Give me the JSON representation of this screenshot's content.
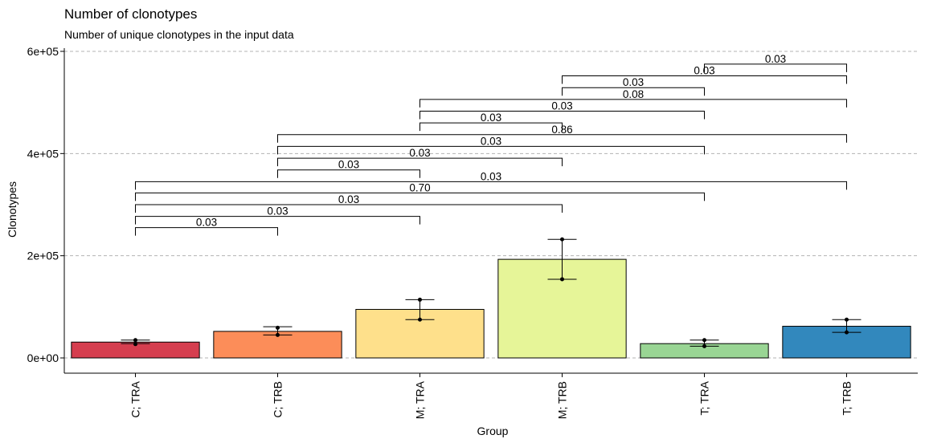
{
  "chart_data": {
    "type": "bar",
    "title": "Number of clonotypes",
    "subtitle": "Number of unique clonotypes in the input data",
    "xlabel": "Group",
    "ylabel": "Clonotypes",
    "ylim": [
      0,
      600000
    ],
    "y_ticks": [
      0,
      200000,
      400000,
      600000
    ],
    "y_tick_labels": [
      "0e+00",
      "2e+05",
      "4e+05",
      "6e+05"
    ],
    "grid": "horizontal-dashed",
    "categories": [
      "C; TRA",
      "C; TRB",
      "M; TRA",
      "M; TRB",
      "T; TRA",
      "T; TRB"
    ],
    "values": [
      31000,
      52000,
      95000,
      193000,
      28000,
      62000
    ],
    "error_low": [
      28000,
      45000,
      75000,
      154000,
      23000,
      50000
    ],
    "error_high": [
      35000,
      61000,
      114000,
      232000,
      35000,
      75000
    ],
    "points": [
      [
        27000,
        35000
      ],
      [
        45000,
        59000
      ],
      [
        75000,
        114000
      ],
      [
        154000,
        232000
      ],
      [
        23000,
        35000
      ],
      [
        50000,
        75000
      ]
    ],
    "colors": [
      "#d53e4f",
      "#fc8d59",
      "#fee08b",
      "#e6f598",
      "#99d594",
      "#3288bd"
    ],
    "comparisons": [
      {
        "a": 0,
        "b": 1,
        "y": 255000,
        "label": "0.03"
      },
      {
        "a": 0,
        "b": 2,
        "y": 277000,
        "label": "0.03"
      },
      {
        "a": 0,
        "b": 3,
        "y": 300000,
        "label": "0.03"
      },
      {
        "a": 0,
        "b": 4,
        "y": 323000,
        "label": "0.70"
      },
      {
        "a": 0,
        "b": 5,
        "y": 345000,
        "label": "0.03"
      },
      {
        "a": 1,
        "b": 2,
        "y": 368000,
        "label": "0.03"
      },
      {
        "a": 1,
        "b": 3,
        "y": 391000,
        "label": "0.03"
      },
      {
        "a": 1,
        "b": 4,
        "y": 414000,
        "label": "0.03"
      },
      {
        "a": 1,
        "b": 5,
        "y": 437000,
        "label": "0.86"
      },
      {
        "a": 2,
        "b": 3,
        "y": 460000,
        "label": "0.03"
      },
      {
        "a": 2,
        "b": 4,
        "y": 483000,
        "label": "0.03"
      },
      {
        "a": 2,
        "b": 5,
        "y": 506000,
        "label": "0.08"
      },
      {
        "a": 3,
        "b": 4,
        "y": 529000,
        "label": "0.03"
      },
      {
        "a": 3,
        "b": 5,
        "y": 552000,
        "label": "0.03"
      },
      {
        "a": 4,
        "b": 5,
        "y": 575000,
        "label": "0.03"
      }
    ]
  }
}
